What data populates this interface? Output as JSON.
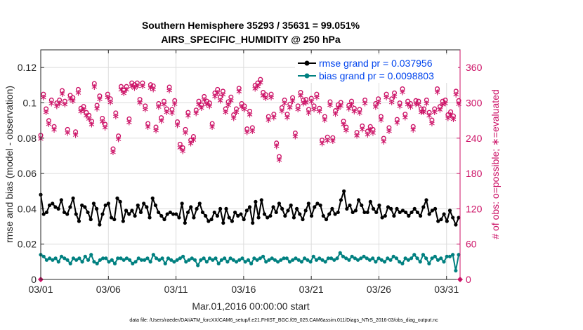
{
  "chart_data": {
    "type": "line",
    "title": "Southern Hemisphere 35293 / 35631 = 99.051%",
    "subtitle": "AIRS_SPECIFIC_HUMIDITY @ 250 hPa",
    "xlabel": "Mar.01,2016 00:00:00 start",
    "ylabel": "rmse and bias (model - observation)",
    "y2label": "# of obs: o=possible; ∗=evaluated",
    "footnote": "data file: /Users/raeder/DAI/ATM_forcXX/CAM6_setup/f.e21.FHIST_BGC.f09_025.CAM6assim.011/Diags_NTrS_2016-03/obs_diag_output.nc",
    "xlim": [
      1,
      32
    ],
    "xticks": [
      1,
      6,
      11,
      16,
      21,
      26,
      31
    ],
    "xtick_labels": [
      "03/01",
      "03/06",
      "03/11",
      "03/16",
      "03/21",
      "03/26",
      "03/31"
    ],
    "ylim": [
      0,
      0.13
    ],
    "yticks": [
      0,
      0.02,
      0.04,
      0.06,
      0.08,
      0.1,
      0.12
    ],
    "ytick_labels": [
      "0",
      "0.02",
      "0.04",
      "0.06",
      "0.08",
      "0.1",
      "0.12"
    ],
    "y2lim": [
      0,
      390
    ],
    "y2ticks": [
      0,
      60,
      120,
      180,
      240,
      300,
      360
    ],
    "y2tick_labels": [
      "0",
      "60",
      "120",
      "180",
      "240",
      "300",
      "360"
    ],
    "grid": true,
    "legend_position": "top-right",
    "colors": {
      "rmse": "#000000",
      "bias": "#008080",
      "obs": "#cc1166",
      "legend_text": "#0044ee"
    },
    "series": [
      {
        "name": "rmse grand pr = 0.037956",
        "axis": "left",
        "values": [
          0.048,
          0.037,
          0.038,
          0.042,
          0.043,
          0.041,
          0.04,
          0.045,
          0.038,
          0.037,
          0.041,
          0.046,
          0.037,
          0.033,
          0.042,
          0.041,
          0.038,
          0.034,
          0.043,
          0.04,
          0.031,
          0.037,
          0.042,
          0.043,
          0.035,
          0.034,
          0.046,
          0.044,
          0.033,
          0.039,
          0.037,
          0.039,
          0.036,
          0.042,
          0.038,
          0.043,
          0.041,
          0.035,
          0.046,
          0.042,
          0.038,
          0.036,
          0.034,
          0.037,
          0.038,
          0.037,
          0.037,
          0.035,
          0.043,
          0.032,
          0.038,
          0.041,
          0.035,
          0.04,
          0.043,
          0.038,
          0.036,
          0.033,
          0.034,
          0.038,
          0.036,
          0.04,
          0.032,
          0.04,
          0.035,
          0.033,
          0.038,
          0.036,
          0.037,
          0.034,
          0.039,
          0.041,
          0.032,
          0.044,
          0.035,
          0.045,
          0.037,
          0.035,
          0.036,
          0.041,
          0.038,
          0.043,
          0.04,
          0.036,
          0.039,
          0.042,
          0.035,
          0.04,
          0.037,
          0.034,
          0.039,
          0.043,
          0.036,
          0.041,
          0.043,
          0.042,
          0.036,
          0.034,
          0.037,
          0.04,
          0.037,
          0.038,
          0.045,
          0.05,
          0.04,
          0.042,
          0.038,
          0.039,
          0.045,
          0.042,
          0.038,
          0.038,
          0.044,
          0.04,
          0.038,
          0.042,
          0.035,
          0.036,
          0.041,
          0.04,
          0.036,
          0.04,
          0.038,
          0.039,
          0.038,
          0.036,
          0.038,
          0.04,
          0.038,
          0.036,
          0.041,
          0.045,
          0.037,
          0.039,
          0.04,
          0.033,
          0.034,
          0.037,
          0.033,
          0.039,
          0.035,
          0.031,
          0.035
        ]
      },
      {
        "name": "bias grand pr = 0.0098803",
        "axis": "left",
        "values": [
          0.014,
          0.013,
          0.011,
          0.012,
          0.011,
          0.012,
          0.01,
          0.013,
          0.012,
          0.011,
          0.009,
          0.012,
          0.011,
          0.012,
          0.01,
          0.013,
          0.011,
          0.014,
          0.01,
          0.009,
          0.011,
          0.012,
          0.012,
          0.01,
          0.011,
          0.009,
          0.012,
          0.012,
          0.011,
          0.012,
          0.011,
          0.009,
          0.01,
          0.012,
          0.011,
          0.011,
          0.012,
          0.01,
          0.014,
          0.012,
          0.011,
          0.012,
          0.009,
          0.012,
          0.011,
          0.01,
          0.011,
          0.012,
          0.013,
          0.01,
          0.011,
          0.012,
          0.011,
          0.008,
          0.011,
          0.012,
          0.01,
          0.012,
          0.011,
          0.012,
          0.009,
          0.011,
          0.012,
          0.01,
          0.012,
          0.011,
          0.01,
          0.011,
          0.012,
          0.01,
          0.011,
          0.009,
          0.012,
          0.011,
          0.012,
          0.013,
          0.01,
          0.011,
          0.012,
          0.011,
          0.01,
          0.011,
          0.012,
          0.012,
          0.01,
          0.011,
          0.012,
          0.011,
          0.01,
          0.012,
          0.011,
          0.01,
          0.013,
          0.011,
          0.012,
          0.011,
          0.01,
          0.012,
          0.012,
          0.011,
          0.012,
          0.015,
          0.013,
          0.012,
          0.011,
          0.013,
          0.012,
          0.011,
          0.012,
          0.013,
          0.012,
          0.011,
          0.012,
          0.01,
          0.012,
          0.011,
          0.01,
          0.012,
          0.011,
          0.013,
          0.012,
          0.01,
          0.009,
          0.012,
          0.011,
          0.012,
          0.014,
          0.012,
          0.01,
          0.014,
          0.012,
          0.009,
          0.012,
          0.013,
          0.011,
          0.012,
          0.01,
          0.013,
          0.013,
          0.014,
          0.005,
          0.014
        ]
      },
      {
        "name": "# of obs",
        "axis": "right",
        "markers": "o=possible; ∗=evaluated",
        "values": [
          240,
          310,
          285,
          265,
          300,
          255,
          295,
          300,
          316,
          298,
          250,
          308,
          304,
          246,
          318,
          286,
          289,
          279,
          274,
          264,
          328,
          291,
          307,
          269,
          259,
          310,
          302,
          217,
          278,
          239,
          323,
          317,
          323,
          268,
          329,
          326,
          329,
          301,
          329,
          290,
          260,
          326,
          324,
          254,
          294,
          270,
          298,
          285,
          322,
          284,
          299,
          263,
          225,
          219,
          250,
          279,
          232,
          238,
          283,
          298,
          292,
          306,
          298,
          295,
          260,
          312,
          318,
          305,
          315,
          285,
          297,
          305,
          275,
          285,
          320,
          294,
          290,
          251,
          281,
          253,
          325,
          329,
          335,
          313,
          309,
          272,
          310,
          276,
          227,
          204,
          287,
          300,
          276,
          293,
          304,
          244,
          290,
          313,
          300,
          301,
          284,
          303,
          290,
          310,
          286,
          232,
          272,
          237,
          297,
          236,
          282,
          292,
          296,
          264,
          254,
          291,
          298,
          286,
          245,
          284,
          256,
          300,
          247,
          255,
          250,
          294,
          302,
          272,
          235,
          310,
          253,
          302,
          312,
          267,
          295,
          319,
          276,
          298,
          294,
          255,
          299,
          298,
          285,
          285,
          300,
          279,
          266,
          285,
          319,
          289,
          298,
          300,
          275,
          280,
          273,
          315,
          299
        ]
      }
    ],
    "legend": [
      {
        "label": "rmse grand pr = 0.037956",
        "color": "#000000"
      },
      {
        "label": "bias grand pr = 0.0098803",
        "color": "#008080"
      }
    ]
  }
}
